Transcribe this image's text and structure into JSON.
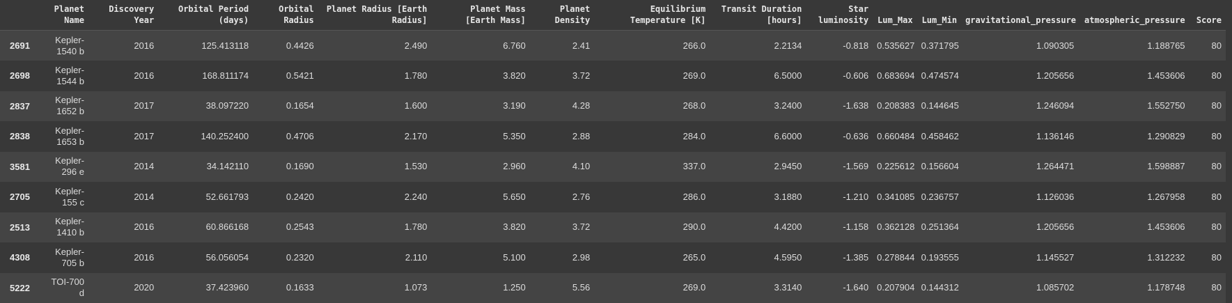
{
  "table": {
    "columns": [
      "",
      "Planet Name",
      "Discovery Year",
      "Orbital Period (days)",
      "Orbital Radius",
      "Planet Radius [Earth Radius]",
      "Planet Mass [Earth Mass]",
      "Planet Density",
      "Equilibrium Temperature [K]",
      "Transit Duration [hours]",
      "Star luminosity",
      "Lum_Max",
      "Lum_Min",
      "gravitational_pressure",
      "atmospheric_pressure",
      "Score"
    ],
    "rows": [
      [
        "2691",
        "Kepler-1540 b",
        "2016",
        "125.413118",
        "0.4426",
        "2.490",
        "6.760",
        "2.41",
        "266.0",
        "2.2134",
        "-0.818",
        "0.535627",
        "0.371795",
        "1.090305",
        "1.188765",
        "80"
      ],
      [
        "2698",
        "Kepler-1544 b",
        "2016",
        "168.811174",
        "0.5421",
        "1.780",
        "3.820",
        "3.72",
        "269.0",
        "6.5000",
        "-0.606",
        "0.683694",
        "0.474574",
        "1.205656",
        "1.453606",
        "80"
      ],
      [
        "2837",
        "Kepler-1652 b",
        "2017",
        "38.097220",
        "0.1654",
        "1.600",
        "3.190",
        "4.28",
        "268.0",
        "3.2400",
        "-1.638",
        "0.208383",
        "0.144645",
        "1.246094",
        "1.552750",
        "80"
      ],
      [
        "2838",
        "Kepler-1653 b",
        "2017",
        "140.252400",
        "0.4706",
        "2.170",
        "5.350",
        "2.88",
        "284.0",
        "6.6000",
        "-0.636",
        "0.660484",
        "0.458462",
        "1.136146",
        "1.290829",
        "80"
      ],
      [
        "3581",
        "Kepler-296 e",
        "2014",
        "34.142110",
        "0.1690",
        "1.530",
        "2.960",
        "4.10",
        "337.0",
        "2.9450",
        "-1.569",
        "0.225612",
        "0.156604",
        "1.264471",
        "1.598887",
        "80"
      ],
      [
        "2705",
        "Kepler-155 c",
        "2014",
        "52.661793",
        "0.2420",
        "2.240",
        "5.650",
        "2.76",
        "286.0",
        "3.1880",
        "-1.210",
        "0.341085",
        "0.236757",
        "1.126036",
        "1.267958",
        "80"
      ],
      [
        "2513",
        "Kepler-1410 b",
        "2016",
        "60.866168",
        "0.2543",
        "1.780",
        "3.820",
        "3.72",
        "290.0",
        "4.4200",
        "-1.158",
        "0.362128",
        "0.251364",
        "1.205656",
        "1.453606",
        "80"
      ],
      [
        "4308",
        "Kepler-705 b",
        "2016",
        "56.056054",
        "0.2320",
        "2.110",
        "5.100",
        "2.98",
        "265.0",
        "4.5950",
        "-1.385",
        "0.278844",
        "0.193555",
        "1.145527",
        "1.312232",
        "80"
      ],
      [
        "5222",
        "TOI-700 d",
        "2020",
        "37.423960",
        "0.1633",
        "1.073",
        "1.250",
        "5.56",
        "269.0",
        "3.3140",
        "-1.640",
        "0.207904",
        "0.144312",
        "1.085702",
        "1.178748",
        "80"
      ]
    ]
  }
}
